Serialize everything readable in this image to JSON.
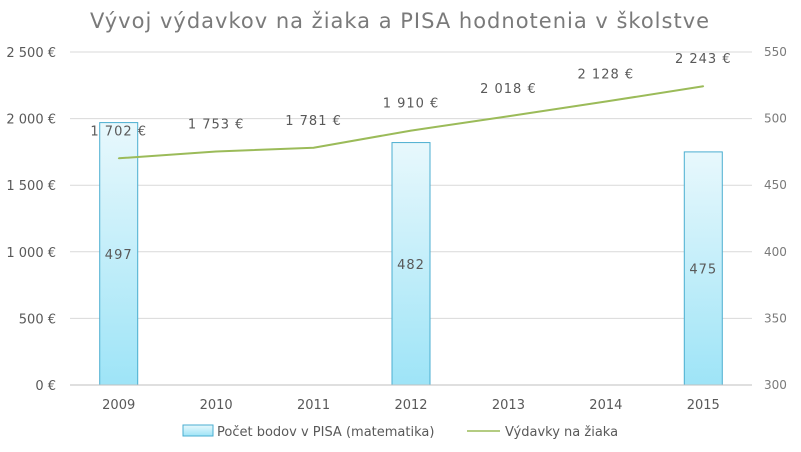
{
  "chart_data": {
    "type": "bar",
    "title": "Vývoj výdavkov na žiaka a PISA hodnotenia v školstve",
    "categories": [
      "2009",
      "2010",
      "2011",
      "2012",
      "2013",
      "2014",
      "2015"
    ],
    "left_axis": {
      "ylim": [
        0,
        2500
      ],
      "ticks": [
        0,
        500,
        1000,
        1500,
        2000,
        2500
      ],
      "tick_labels": [
        "0 €",
        "500 €",
        "1 000 €",
        "1 500 €",
        "2 000 €",
        "2 500 €"
      ]
    },
    "right_axis": {
      "ylim": [
        300,
        550
      ],
      "ticks": [
        300,
        350,
        400,
        450,
        500,
        550
      ],
      "tick_labels": [
        "300",
        "350",
        "400",
        "450",
        "500",
        "550"
      ]
    },
    "grid": true,
    "legend_position": "bottom",
    "series": [
      {
        "name": "Počet bodov v PISA (matematika)",
        "type": "bar",
        "axis": "right",
        "values": [
          497,
          null,
          null,
          482,
          null,
          null,
          475
        ],
        "labels": [
          "497",
          "",
          "",
          "482",
          "",
          "",
          "475"
        ],
        "fill_top": "#e8f8fc",
        "fill_bottom": "#9ee4f7",
        "stroke": "#4aaed0"
      },
      {
        "name": "Výdavky na žiaka",
        "type": "line",
        "axis": "left",
        "values": [
          1702,
          1753,
          1781,
          1910,
          2018,
          2128,
          2243
        ],
        "labels": [
          "1 702 €",
          "1 753 €",
          "1 781 €",
          "1 910 €",
          "2 018 €",
          "2 128 €",
          "2 243 €"
        ],
        "color": "#9bbb59"
      }
    ]
  }
}
